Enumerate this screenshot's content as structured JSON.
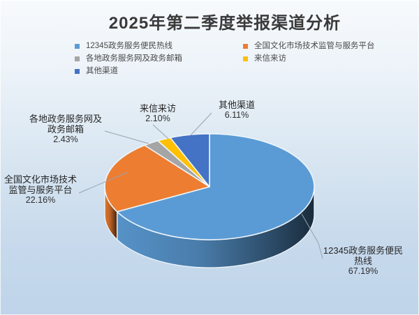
{
  "title": "2025年第二季度举报渠道分析",
  "chart_data": {
    "type": "pie",
    "style": "3d",
    "title": "2025年第二季度举报渠道分析",
    "legend_position": "top, two columns",
    "direction": "clockwise",
    "start_angle_deg": 0,
    "categories": [
      "12345政务服务便民热线",
      "全国文化市场技术监管与服务平台",
      "各地政务服务网及政务邮箱",
      "来信来访",
      "其他渠道"
    ],
    "values": [
      67.19,
      22.16,
      2.43,
      2.1,
      6.11
    ],
    "unit": "percent",
    "colors": [
      "#5B9BD5",
      "#ED7D31",
      "#A5A5A5",
      "#FFC000",
      "#4472C4"
    ],
    "value_labels": [
      "67.19%",
      "22.16%",
      "2.43%",
      "2.10%",
      "6.11%"
    ]
  },
  "callouts": [
    {
      "lines": [
        "12345政务服务便民",
        "热线"
      ],
      "value": "67.19%"
    },
    {
      "lines": [
        "全国文化市场技术",
        "监管与服务平台"
      ],
      "value": "22.16%"
    },
    {
      "lines": [
        "各地政务服务网及",
        "政务邮箱"
      ],
      "value": "2.43%"
    },
    {
      "lines": [
        "来信来访"
      ],
      "value": "2.10%"
    },
    {
      "lines": [
        "其他渠道"
      ],
      "value": "6.11%"
    }
  ]
}
